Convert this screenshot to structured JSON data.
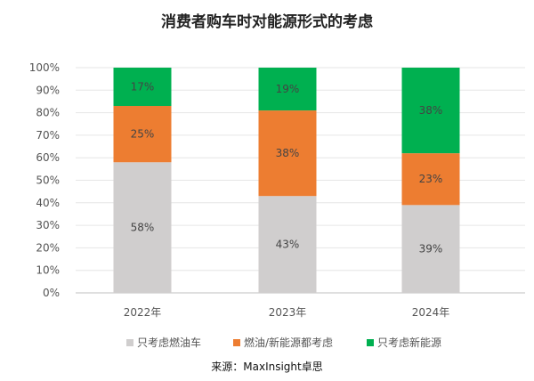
{
  "chart_data": {
    "type": "bar",
    "stacked": true,
    "title": "消费者购车时对能源形式的考虑",
    "categories": [
      "2022年",
      "2023年",
      "2024年"
    ],
    "series": [
      {
        "name": "只考虑燃油车",
        "values": [
          58,
          43,
          39
        ],
        "labels": [
          "58%",
          "43%",
          "39%"
        ],
        "color": "#d0cece"
      },
      {
        "name": "燃油/新能源都考虑",
        "values": [
          25,
          38,
          23
        ],
        "labels": [
          "25%",
          "38%",
          "23%"
        ],
        "color": "#ed7d31"
      },
      {
        "name": "只考虑新能源",
        "values": [
          17,
          19,
          38
        ],
        "labels": [
          "17%",
          "19%",
          "38%"
        ],
        "color": "#00b050"
      }
    ],
    "yticks": [
      "0%",
      "10%",
      "20%",
      "30%",
      "40%",
      "50%",
      "60%",
      "70%",
      "80%",
      "90%",
      "100%"
    ],
    "ylim": [
      0,
      100
    ],
    "grid": true,
    "legend": "bottom",
    "source": "来源：MaxInsight卓思"
  }
}
